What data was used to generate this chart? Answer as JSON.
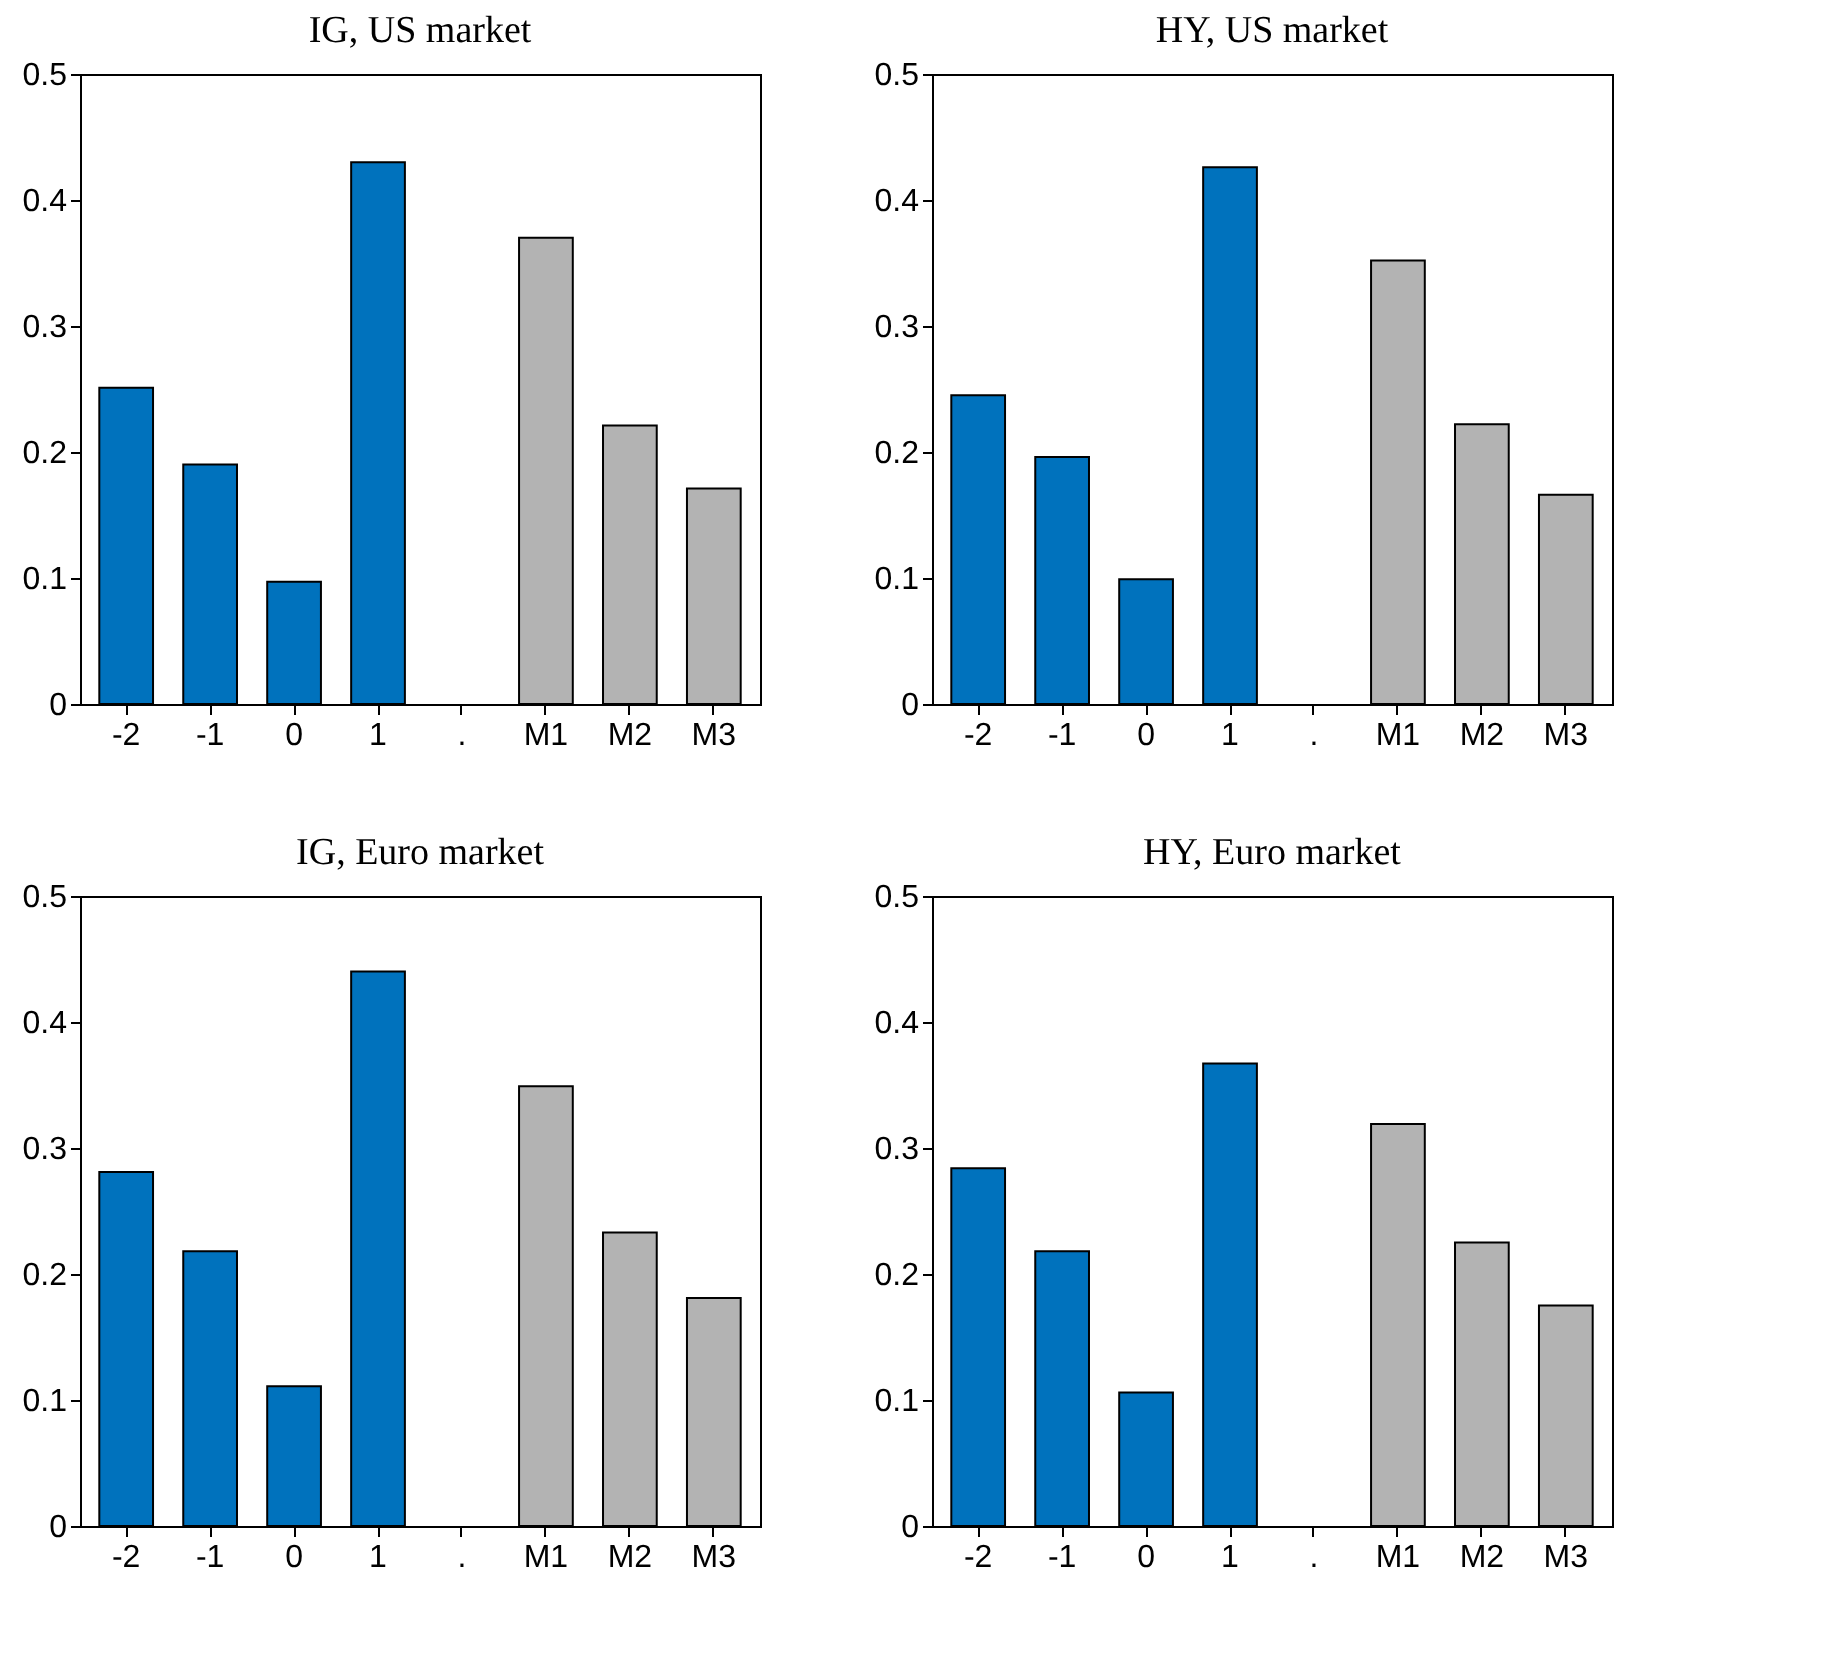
{
  "chart_data": [
    {
      "type": "bar",
      "title": "IG, US market",
      "categories": [
        "-2",
        "-1",
        "0",
        "1",
        ".",
        "M1",
        "M2",
        "M3"
      ],
      "values": [
        0.251,
        0.19,
        0.097,
        0.43,
        null,
        0.37,
        0.221,
        0.171
      ],
      "colors": [
        "#0072bd",
        "#0072bd",
        "#0072bd",
        "#0072bd",
        "#b3b3b3",
        "#b3b3b3",
        "#b3b3b3",
        "#b3b3b3"
      ],
      "ylim": [
        0,
        0.5
      ],
      "yticks": [
        0,
        0.1,
        0.2,
        0.3,
        0.4,
        0.5
      ],
      "grid": false
    },
    {
      "type": "bar",
      "title": "HY, US market",
      "categories": [
        "-2",
        "-1",
        "0",
        "1",
        ".",
        "M1",
        "M2",
        "M3"
      ],
      "values": [
        0.245,
        0.196,
        0.099,
        0.426,
        null,
        0.352,
        0.222,
        0.166
      ],
      "colors": [
        "#0072bd",
        "#0072bd",
        "#0072bd",
        "#0072bd",
        "#b3b3b3",
        "#b3b3b3",
        "#b3b3b3",
        "#b3b3b3"
      ],
      "ylim": [
        0,
        0.5
      ],
      "yticks": [
        0,
        0.1,
        0.2,
        0.3,
        0.4,
        0.5
      ],
      "grid": false
    },
    {
      "type": "bar",
      "title": "IG, Euro market",
      "categories": [
        "-2",
        "-1",
        "0",
        "1",
        ".",
        "M1",
        "M2",
        "M3"
      ],
      "values": [
        0.281,
        0.218,
        0.111,
        0.44,
        null,
        0.349,
        0.233,
        0.181
      ],
      "colors": [
        "#0072bd",
        "#0072bd",
        "#0072bd",
        "#0072bd",
        "#b3b3b3",
        "#b3b3b3",
        "#b3b3b3",
        "#b3b3b3"
      ],
      "ylim": [
        0,
        0.5
      ],
      "yticks": [
        0,
        0.1,
        0.2,
        0.3,
        0.4,
        0.5
      ],
      "grid": false
    },
    {
      "type": "bar",
      "title": "HY, Euro market",
      "categories": [
        "-2",
        "-1",
        "0",
        "1",
        ".",
        "M1",
        "M2",
        "M3"
      ],
      "values": [
        0.284,
        0.218,
        0.106,
        0.367,
        null,
        0.319,
        0.225,
        0.175
      ],
      "colors": [
        "#0072bd",
        "#0072bd",
        "#0072bd",
        "#0072bd",
        "#b3b3b3",
        "#b3b3b3",
        "#b3b3b3",
        "#b3b3b3"
      ],
      "ylim": [
        0,
        0.5
      ],
      "yticks": [
        0,
        0.1,
        0.2,
        0.3,
        0.4,
        0.5
      ],
      "grid": false
    }
  ]
}
